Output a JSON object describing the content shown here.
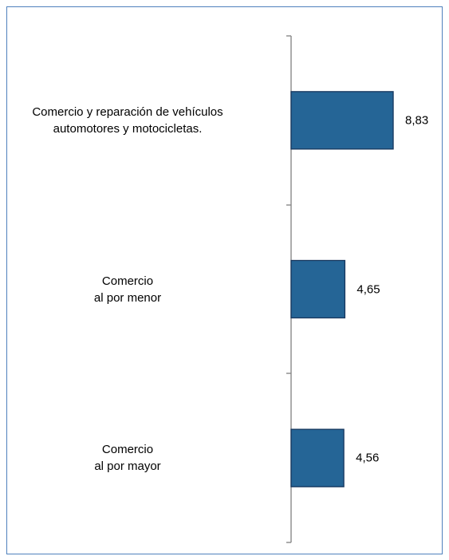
{
  "chart_data": {
    "type": "hbar",
    "categories": [
      "Comercio y reparación de vehículos\nautomotores y motocicletas.",
      "Comercio\nal por menor",
      "Comercio\nal por mayor"
    ],
    "values": [
      8.83,
      4.65,
      4.56
    ],
    "value_labels": [
      "8,83",
      "4,65",
      "4,56"
    ],
    "color": "#256596"
  }
}
